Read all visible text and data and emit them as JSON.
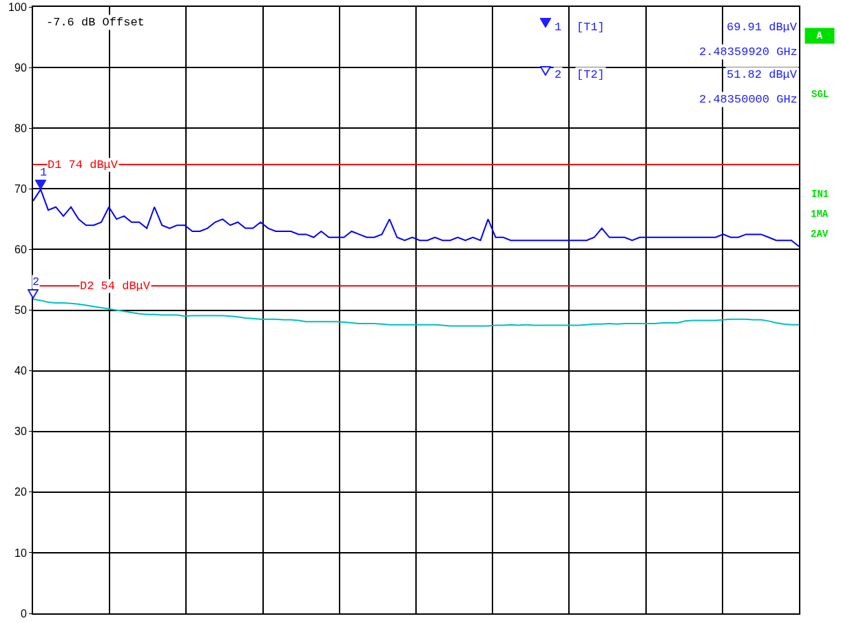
{
  "chart_data": {
    "type": "line",
    "categories": [
      null,
      null,
      null,
      null,
      null,
      null,
      null,
      null,
      null,
      null,
      null,
      null,
      null,
      null,
      null,
      null,
      null,
      null,
      null,
      null,
      null,
      null,
      null,
      null,
      null,
      null,
      null,
      null,
      null,
      null,
      null,
      null,
      null,
      null,
      null,
      null,
      null,
      null,
      null,
      null,
      null,
      null,
      null,
      null,
      null,
      null,
      null,
      null,
      null,
      null,
      null,
      null,
      null,
      null,
      null,
      null,
      null,
      null,
      null,
      null,
      null,
      null,
      null,
      null,
      null,
      null,
      null,
      null,
      null,
      null,
      null,
      null,
      null,
      null,
      null,
      null,
      null,
      null,
      null,
      null,
      null,
      null,
      null,
      null,
      null,
      null,
      null,
      null,
      null,
      null,
      null,
      null,
      null,
      null,
      null,
      null,
      null,
      null,
      null,
      null,
      null,
      null
    ],
    "series": [
      {
        "color": "#0000ff",
        "values": [
          68,
          69.91,
          66.5,
          67,
          65.5,
          67,
          65,
          64,
          64,
          64.5,
          67,
          65,
          65.5,
          64.5,
          64.5,
          63.5,
          67,
          64,
          63.5,
          64,
          64,
          63,
          63,
          63.5,
          64.5,
          65,
          64,
          64.5,
          63.5,
          63.5,
          64.5,
          63.5,
          63,
          63,
          63,
          62.5,
          62.5,
          62,
          63,
          62,
          62,
          62,
          63,
          62.5,
          62,
          62,
          62.5,
          65,
          62,
          61.5,
          62,
          61.5,
          61.5,
          62,
          61.5,
          61.5,
          62,
          61.5,
          62,
          61.5,
          65,
          62,
          62,
          61.5,
          61.5,
          61.5,
          61.5,
          61.5,
          61.5,
          61.5,
          61.5,
          61.5,
          61.5,
          61.5,
          62,
          63.5,
          62,
          62,
          62,
          61.5,
          62,
          62,
          62,
          62,
          62,
          62,
          62,
          62,
          62,
          62,
          62,
          62.5,
          62,
          62,
          62.5,
          62.5,
          62.5,
          62,
          61.5,
          61.5,
          61.5,
          60.5
        ]
      },
      {
        "color": "#00bfbf",
        "values": [
          51.82,
          51.6,
          51.3,
          51.2,
          51.2,
          51.1,
          51,
          50.8,
          50.6,
          50.4,
          50.2,
          50,
          49.8,
          49.6,
          49.4,
          49.3,
          49.3,
          49.2,
          49.2,
          49.2,
          49,
          49.1,
          49.1,
          49.1,
          49.1,
          49.1,
          49,
          48.9,
          48.7,
          48.6,
          48.5,
          48.5,
          48.5,
          48.4,
          48.4,
          48.3,
          48.1,
          48.1,
          48.1,
          48.1,
          48.1,
          48,
          47.9,
          47.8,
          47.8,
          47.8,
          47.7,
          47.6,
          47.6,
          47.6,
          47.6,
          47.6,
          47.6,
          47.6,
          47.5,
          47.4,
          47.4,
          47.4,
          47.4,
          47.4,
          47.4,
          47.5,
          47.5,
          47.6,
          47.5,
          47.6,
          47.5,
          47.5,
          47.5,
          47.5,
          47.5,
          47.5,
          47.5,
          47.6,
          47.7,
          47.7,
          47.8,
          47.7,
          47.8,
          47.8,
          47.8,
          47.8,
          47.8,
          47.9,
          47.9,
          47.9,
          48.2,
          48.3,
          48.3,
          48.3,
          48.3,
          48.4,
          48.5,
          48.5,
          48.5,
          48.4,
          48.4,
          48.2,
          47.9,
          47.7,
          47.6,
          47.6
        ]
      }
    ],
    "ylim": [
      0,
      100
    ],
    "yticks": [
      0,
      10,
      20,
      30,
      40,
      50,
      60,
      70,
      80,
      90,
      100
    ],
    "grid": true,
    "tick_labels": "y",
    "marker": "none",
    "line_style": "solid",
    "ref_lines": [
      {
        "axis": "y",
        "value": 74,
        "label": "D1 74 dBμV",
        "color": "#ff0000"
      },
      {
        "axis": "y",
        "value": 54,
        "label": "D2 54 dBμV",
        "color": "#ff0000"
      }
    ],
    "annotations": [
      "-7.6 dB Offset",
      {
        "text": "1",
        "y": 69.91
      },
      {
        "text": "2",
        "y": 51.82
      },
      "1",
      "[T1]",
      "69.91 dBμV",
      "2.48359920 GHz",
      "2",
      "[T2]",
      "51.82 dBμV",
      "2.48350000 GHz",
      "A",
      "SGL",
      "IN1",
      "1MA",
      "2AV"
    ]
  }
}
